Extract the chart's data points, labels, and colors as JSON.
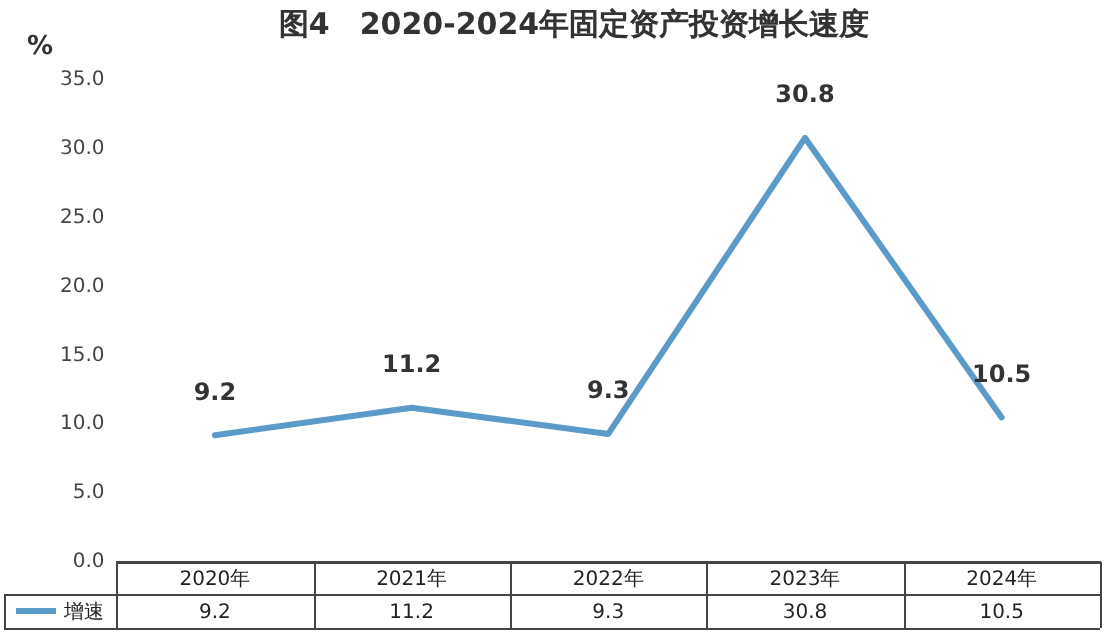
{
  "chart_data": {
    "type": "line",
    "title": "图4　2020-2024年固定资产投资增长速度",
    "ylabel": "%",
    "categories": [
      "2020年",
      "2021年",
      "2022年",
      "2023年",
      "2024年"
    ],
    "series": [
      {
        "name": "增速",
        "color": "#5b9bc9",
        "values": [
          9.2,
          11.2,
          9.3,
          30.8,
          10.5
        ],
        "value_labels": [
          "9.2",
          "11.2",
          "9.3",
          "30.8",
          "10.5"
        ]
      }
    ],
    "ylim": [
      0,
      35
    ],
    "yticks": [
      {
        "value": 0,
        "label": "0.0"
      },
      {
        "value": 5,
        "label": "5.0"
      },
      {
        "value": 10,
        "label": "10.0"
      },
      {
        "value": 15,
        "label": "15.0"
      },
      {
        "value": 20,
        "label": "20.0"
      },
      {
        "value": 25,
        "label": "25.0"
      },
      {
        "value": 30,
        "label": "30.0"
      },
      {
        "value": 35,
        "label": "35.0"
      }
    ],
    "grid": false,
    "marker": "none",
    "line_style": "solid"
  }
}
